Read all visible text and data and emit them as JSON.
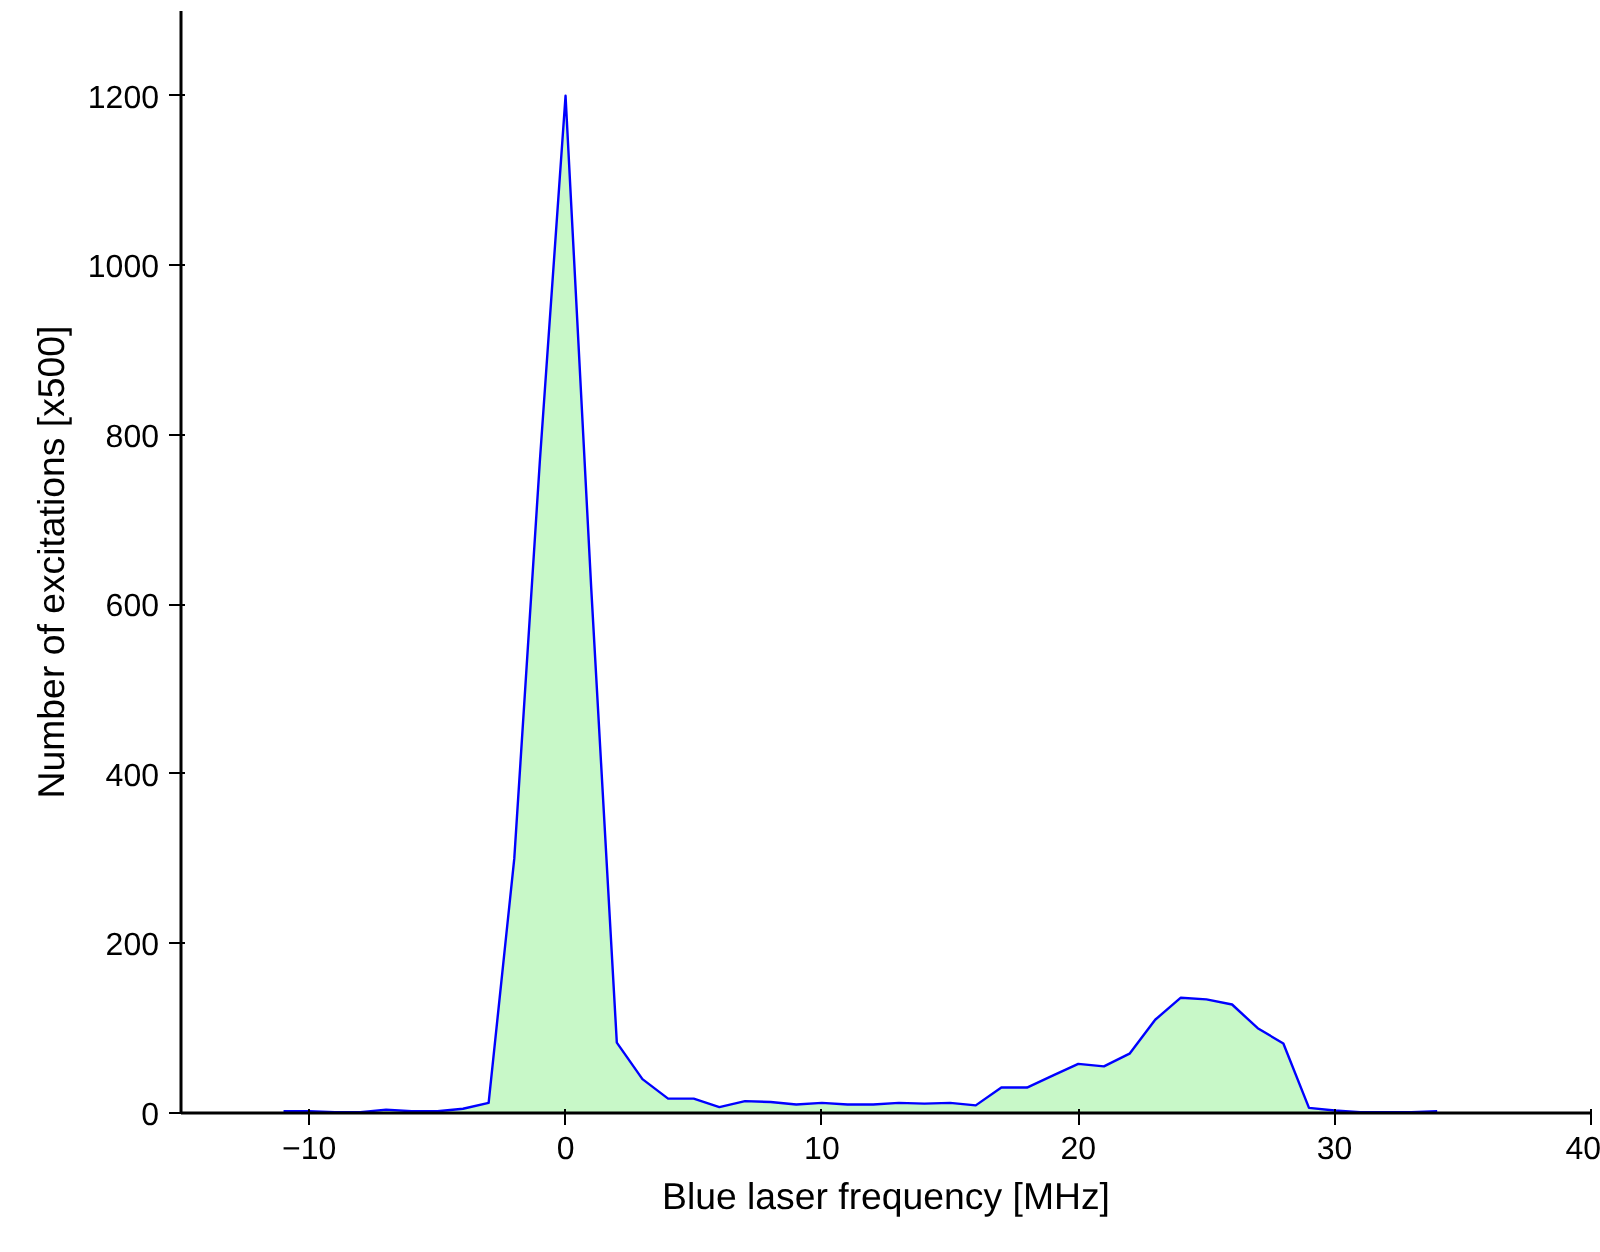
{
  "chart_data": {
    "type": "area",
    "xlabel": "Blue laser frequency [MHz]",
    "ylabel": "Number of excitations [x500]",
    "x": [
      -11,
      -10,
      -9,
      -8,
      -7,
      -6,
      -5,
      -4,
      -3,
      -2,
      -1,
      0,
      1,
      2,
      3,
      4,
      5,
      6,
      7,
      8,
      9,
      10,
      11,
      12,
      13,
      14,
      15,
      16,
      17,
      18,
      19,
      20,
      21,
      22,
      23,
      24,
      25,
      26,
      27,
      28,
      29,
      30,
      31,
      32,
      33,
      34
    ],
    "series": [
      {
        "color": "#c8f8c8",
        "values": [
          2,
          2,
          1,
          1,
          4,
          2,
          2,
          5,
          12,
          300,
          770,
          1200,
          620,
          83,
          40,
          17,
          17,
          7,
          14,
          13,
          10,
          12,
          10,
          10,
          12,
          11,
          12,
          9,
          30,
          30,
          44,
          58,
          55,
          70,
          110,
          136,
          134,
          128,
          100,
          82,
          6,
          3,
          1,
          1,
          1,
          2
        ]
      }
    ],
    "xlim": [
      -15,
      40
    ],
    "xticks": [
      -10,
      0,
      10,
      20,
      30,
      40
    ],
    "ylim": [
      0,
      1300
    ],
    "yticks": [
      0,
      200,
      400,
      600,
      800,
      1000,
      1200
    ],
    "grid": false
  }
}
